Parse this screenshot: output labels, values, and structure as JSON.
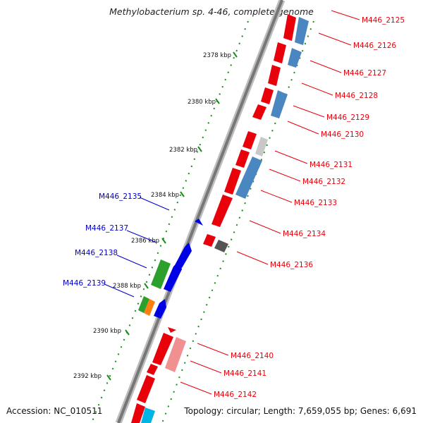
{
  "title": "Methylobacterium sp. 4-46, complete genome",
  "footer": {
    "accession": "Accession: NC_010511",
    "summary": "Topology: circular; Length: 7,659,055 bp; Genes: 6,691"
  },
  "colors": {
    "forward_gene": "#e8000b",
    "reverse_gene": "#0000e6",
    "label_forward": "#e8000b",
    "label_reverse": "#0000cc",
    "backbone": "#888888",
    "tick": "#1a8c1a",
    "cds_blue": "#4a86c0"
  },
  "ticks": [
    {
      "label": "2378 kbp",
      "pos_kbp": 2378
    },
    {
      "label": "2380 kbp",
      "pos_kbp": 2380
    },
    {
      "label": "2382 kbp",
      "pos_kbp": 2382
    },
    {
      "label": "2384 kbp",
      "pos_kbp": 2384
    },
    {
      "label": "2386 kbp",
      "pos_kbp": 2386
    },
    {
      "label": "2388 kbp",
      "pos_kbp": 2388
    },
    {
      "label": "2390 kbp",
      "pos_kbp": 2390
    },
    {
      "label": "2392 kbp",
      "pos_kbp": 2392
    }
  ],
  "genes_forward": [
    "M446_2125",
    "M446_2126",
    "M446_2127",
    "M446_2128",
    "M446_2129",
    "M446_2130",
    "M446_2131",
    "M446_2132",
    "M446_2133",
    "M446_2134",
    "M446_2136",
    "M446_2140",
    "M446_2141",
    "M446_2142"
  ],
  "genes_reverse": [
    "M446_2135",
    "M446_2137",
    "M446_2138",
    "M446_2139"
  ]
}
